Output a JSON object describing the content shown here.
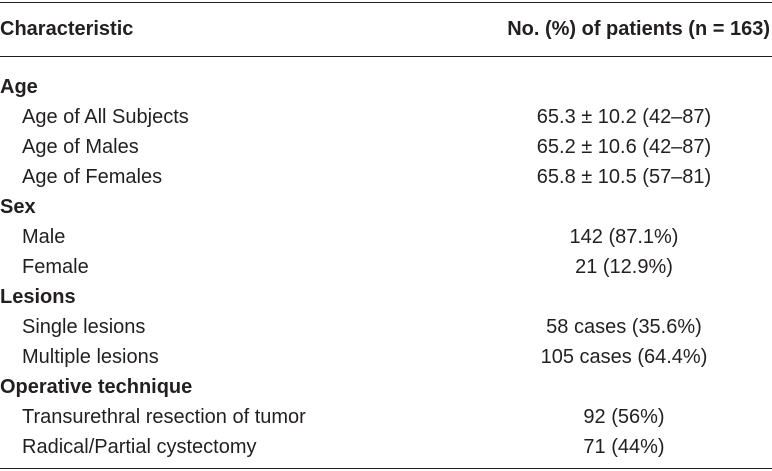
{
  "header": {
    "characteristic": "Characteristic",
    "value": "No. (%) of patients (n = 163)"
  },
  "sections": [
    {
      "label": "Age",
      "rows": [
        {
          "label": "Age of All Subjects",
          "value": "65.3 ± 10.2 (42–87)"
        },
        {
          "label": "Age of Males",
          "value": "65.2 ± 10.6 (42–87)"
        },
        {
          "label": "Age of Females",
          "value": "65.8 ± 10.5 (57–81)"
        }
      ]
    },
    {
      "label": "Sex",
      "rows": [
        {
          "label": "Male",
          "value": "142 (87.1%)"
        },
        {
          "label": "Female",
          "value": "21 (12.9%)"
        }
      ]
    },
    {
      "label": "Lesions",
      "rows": [
        {
          "label": "Single lesions",
          "value": "58 cases (35.6%)"
        },
        {
          "label": "Multiple lesions",
          "value": "105 cases (64.4%)"
        }
      ]
    },
    {
      "label": "Operative technique",
      "rows": [
        {
          "label": "Transurethral resection of tumor",
          "value": "92 (56%)"
        },
        {
          "label": "Radical/Partial cystectomy",
          "value": "71 (44%)"
        }
      ]
    }
  ]
}
